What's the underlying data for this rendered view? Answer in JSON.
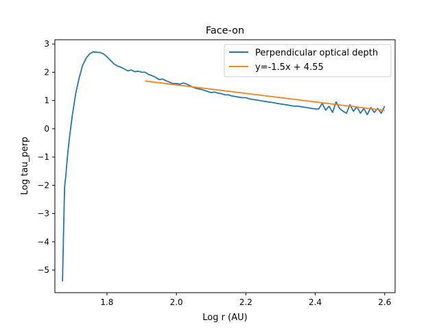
{
  "chart_data": {
    "type": "line",
    "title": "Face-on",
    "xlabel": "Log r (AU)",
    "ylabel": "Log tau_perp",
    "xlim": [
      1.65,
      2.63
    ],
    "ylim": [
      -5.8,
      3.15
    ],
    "xticks": [
      1.8,
      2.0,
      2.2,
      2.4,
      2.6
    ],
    "xtick_labels": [
      "1.8",
      "2.0",
      "2.2",
      "2.4",
      "2.6"
    ],
    "yticks": [
      3,
      2,
      1,
      0,
      -1,
      -2,
      -3,
      -4,
      -5
    ],
    "ytick_labels": [
      "3",
      "2",
      "1",
      "0",
      "−1",
      "−2",
      "−3",
      "−4",
      "−5"
    ],
    "grid": false,
    "legend_position": "top-right",
    "series": [
      {
        "name": "Perpendicular optical depth",
        "color": "#1f77b4",
        "x": [
          1.672,
          1.675,
          1.678,
          1.682,
          1.686,
          1.692,
          1.7,
          1.71,
          1.72,
          1.73,
          1.74,
          1.75,
          1.76,
          1.77,
          1.78,
          1.79,
          1.8,
          1.81,
          1.82,
          1.83,
          1.84,
          1.85,
          1.86,
          1.87,
          1.88,
          1.89,
          1.9,
          1.91,
          1.92,
          1.93,
          1.94,
          1.95,
          1.96,
          1.97,
          1.98,
          1.99,
          2.0,
          2.01,
          2.02,
          2.03,
          2.04,
          2.05,
          2.06,
          2.07,
          2.08,
          2.09,
          2.1,
          2.11,
          2.12,
          2.13,
          2.14,
          2.15,
          2.16,
          2.17,
          2.18,
          2.19,
          2.2,
          2.21,
          2.22,
          2.23,
          2.24,
          2.25,
          2.26,
          2.27,
          2.28,
          2.29,
          2.3,
          2.31,
          2.32,
          2.33,
          2.34,
          2.35,
          2.36,
          2.37,
          2.38,
          2.39,
          2.4,
          2.41,
          2.42,
          2.43,
          2.44,
          2.45,
          2.46,
          2.47,
          2.48,
          2.49,
          2.5,
          2.51,
          2.52,
          2.53,
          2.54,
          2.55,
          2.56,
          2.57,
          2.58,
          2.59,
          2.6
        ],
        "y": [
          -5.4,
          -3.6,
          -2.05,
          -1.6,
          -1.0,
          -0.3,
          0.45,
          1.25,
          1.8,
          2.25,
          2.5,
          2.65,
          2.72,
          2.71,
          2.7,
          2.65,
          2.55,
          2.42,
          2.3,
          2.22,
          2.18,
          2.12,
          2.05,
          2.08,
          2.02,
          2.04,
          2.0,
          2.0,
          1.92,
          1.88,
          1.82,
          1.74,
          1.76,
          1.7,
          1.65,
          1.6,
          1.6,
          1.58,
          1.62,
          1.58,
          1.52,
          1.46,
          1.42,
          1.4,
          1.36,
          1.32,
          1.28,
          1.3,
          1.26,
          1.24,
          1.2,
          1.2,
          1.16,
          1.14,
          1.12,
          1.1,
          1.1,
          1.06,
          1.04,
          1.02,
          1.0,
          0.98,
          0.96,
          0.94,
          0.92,
          0.9,
          0.88,
          0.86,
          0.84,
          0.82,
          0.8,
          0.8,
          0.78,
          0.76,
          0.74,
          0.72,
          0.7,
          0.7,
          0.9,
          0.66,
          0.8,
          0.58,
          0.95,
          0.72,
          0.62,
          0.55,
          0.85,
          0.62,
          0.78,
          0.55,
          0.72,
          0.5,
          0.75,
          0.58,
          0.72,
          0.55,
          0.8
        ]
      },
      {
        "name": "y=-1.5x + 4.55",
        "color": "#ff7f0e",
        "x": [
          1.91,
          2.6
        ],
        "y": [
          1.69,
          0.65
        ]
      }
    ]
  }
}
